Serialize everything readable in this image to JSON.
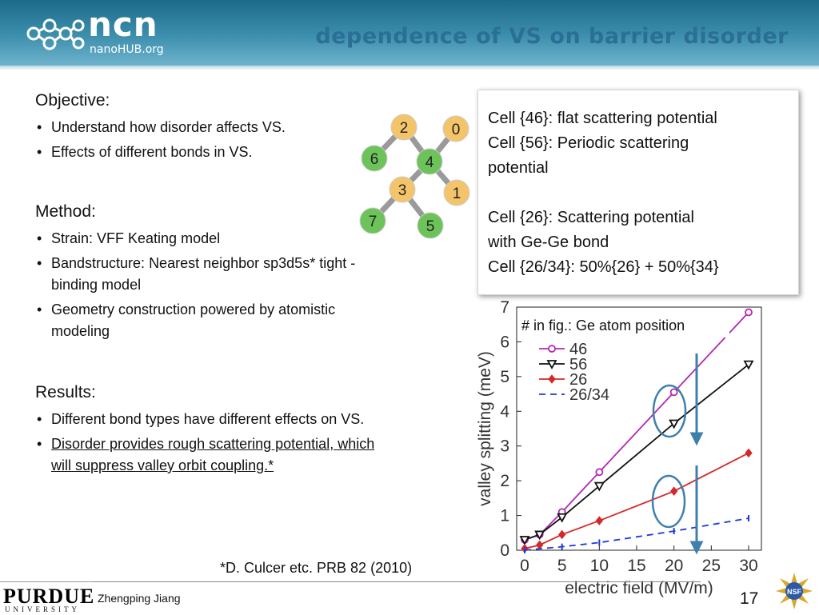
{
  "header": {
    "brand": "ncn",
    "brand_sub": "nanoHUB.org",
    "title": "dependence of VS on barrier disorder"
  },
  "objective": {
    "heading": "Objective:",
    "items": [
      "Understand how disorder affects VS.",
      "Effects of different bonds in VS."
    ]
  },
  "method": {
    "heading": "Method:",
    "items": [
      "Strain: VFF Keating model",
      "Bandstructure: Nearest neighbor sp3d5s* tight - binding model",
      "Geometry construction powered by atomistic modeling"
    ]
  },
  "results": {
    "heading": "Results:",
    "items": [
      "Different bond types have different effects on VS.",
      "Disorder provides rough scattering potential, which will suppress valley orbit coupling.*"
    ]
  },
  "infobox": {
    "lines": [
      "Cell {46}: flat scattering potential",
      "Cell {56}: Periodic scattering",
      "potential",
      "",
      "Cell {26}: Scattering potential",
      "with Ge-Ge bond",
      "Cell {26/34}: 50%{26} + 50%{34}"
    ]
  },
  "molecule": {
    "atoms": [
      {
        "label": "2",
        "color": "#f4c46b"
      },
      {
        "label": "0",
        "color": "#f4c46b"
      },
      {
        "label": "6",
        "color": "#6cc35a"
      },
      {
        "label": "4",
        "color": "#6cc35a"
      },
      {
        "label": "3",
        "color": "#f4c46b"
      },
      {
        "label": "1",
        "color": "#f4c46b"
      },
      {
        "label": "7",
        "color": "#6cc35a"
      },
      {
        "label": "5",
        "color": "#6cc35a"
      }
    ]
  },
  "chart_data": {
    "type": "line",
    "xlabel": "electric field (MV/m)",
    "ylabel": "valley splitting (meV)",
    "xticks": [
      "0",
      "5",
      "10",
      "15",
      "20",
      "25",
      "30"
    ],
    "yticks": [
      "0",
      "1",
      "2",
      "3",
      "4",
      "5",
      "6",
      "7"
    ],
    "xlim": [
      0,
      30
    ],
    "ylim": [
      0,
      7
    ],
    "annotation": "# in fig.: Ge atom position",
    "legend_position": "top-left",
    "series": [
      {
        "name": "46",
        "color": "#b427b4",
        "marker": "circle",
        "dashed": false,
        "x": [
          0,
          2,
          5,
          10,
          20,
          30
        ],
        "y": [
          0.3,
          0.45,
          1.1,
          2.25,
          4.55,
          6.85
        ]
      },
      {
        "name": "56",
        "color": "#111111",
        "marker": "triangle",
        "dashed": false,
        "x": [
          0,
          2,
          5,
          10,
          20,
          30
        ],
        "y": [
          0.3,
          0.45,
          0.95,
          1.85,
          3.65,
          5.35
        ]
      },
      {
        "name": "26",
        "color": "#d62828",
        "marker": "diamond",
        "dashed": false,
        "x": [
          0,
          2,
          5,
          10,
          20,
          30
        ],
        "y": [
          0.05,
          0.15,
          0.45,
          0.85,
          1.7,
          2.8
        ]
      },
      {
        "name": "26/34",
        "color": "#1f3bd6",
        "marker": "errorbar",
        "dashed": true,
        "x": [
          0,
          5,
          10,
          20,
          30
        ],
        "y": [
          0.0,
          0.1,
          0.22,
          0.55,
          0.92
        ]
      }
    ]
  },
  "citation": "*D. Culcer etc. PRB 82 (2010)",
  "footer": {
    "org": "PURDUE",
    "org_sub": "UNIVERSITY",
    "author": "Zhengping Jiang",
    "page": "17",
    "nsf": "NSF"
  }
}
